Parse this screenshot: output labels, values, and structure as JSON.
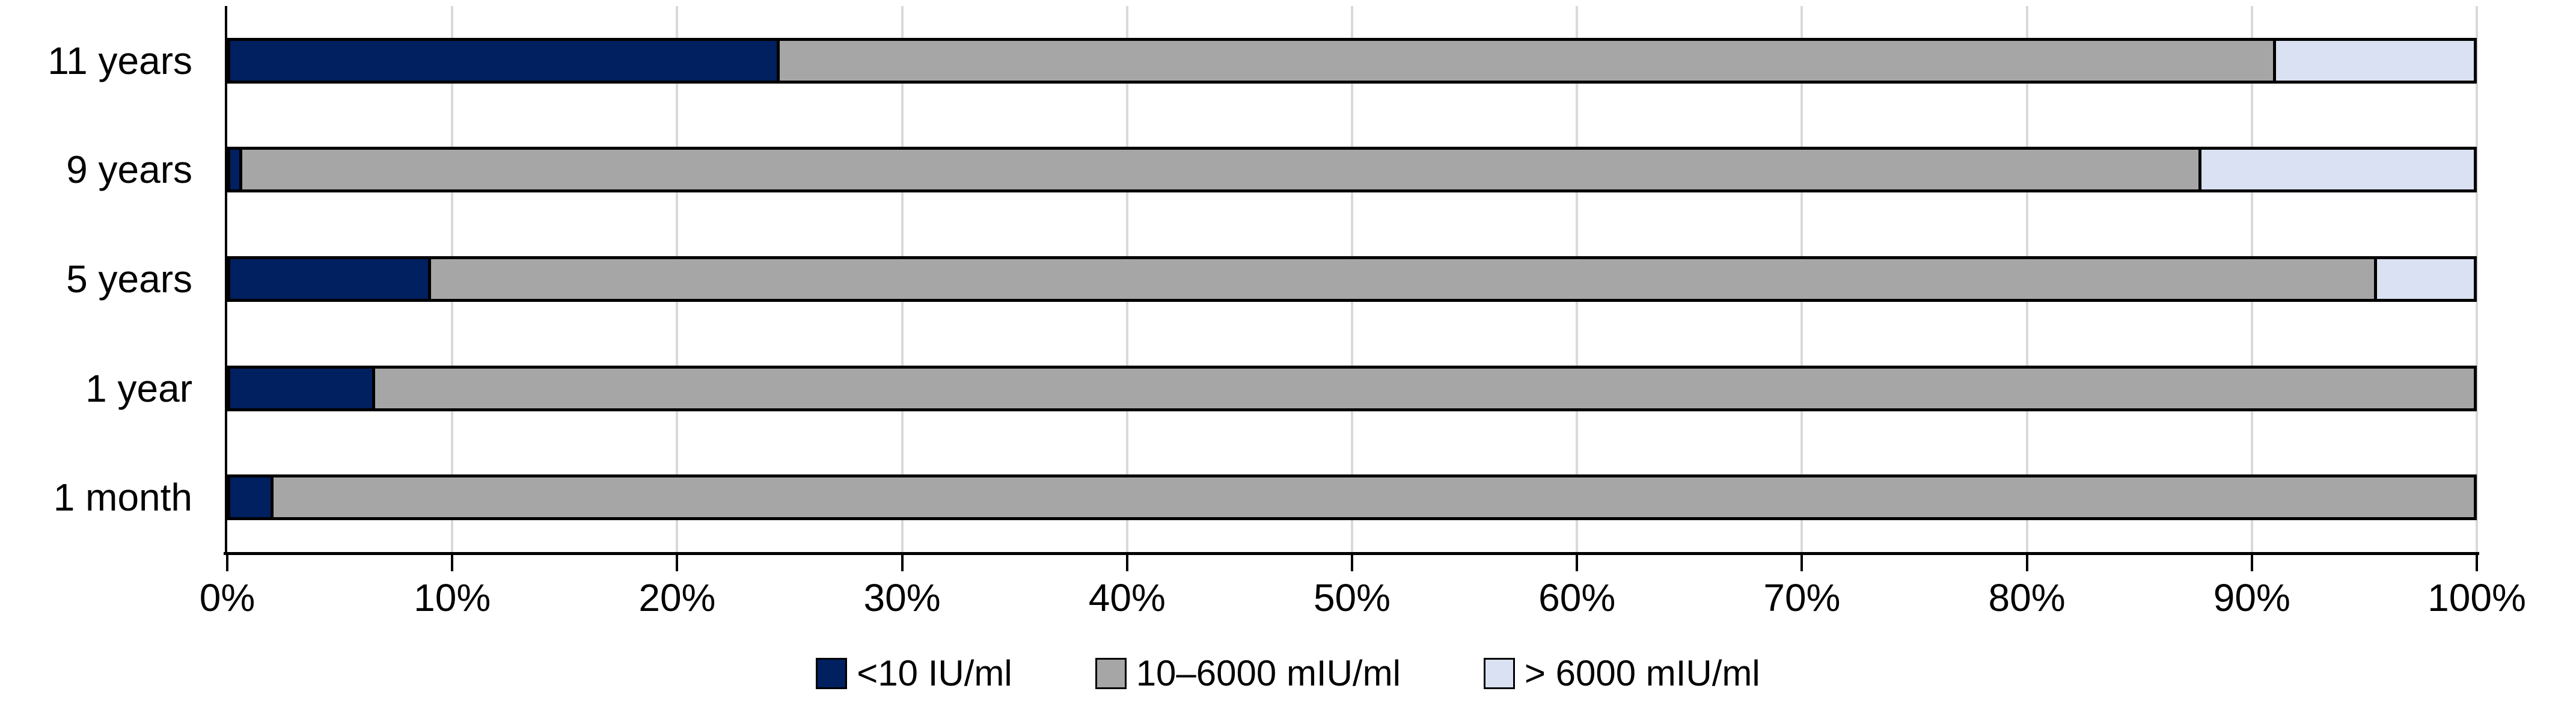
{
  "chart_data": {
    "type": "bar",
    "orientation": "horizontal",
    "stacked": true,
    "unit": "%",
    "title": "",
    "categories": [
      "11 years",
      "9 years",
      "5 years",
      "1 year",
      "1 month"
    ],
    "series": [
      {
        "name": "<10 IU/ml",
        "color": "#002060",
        "values": [
          24.5,
          0.6,
          9.0,
          6.5,
          2.0
        ]
      },
      {
        "name": "10–6000 mIU/ml",
        "color": "#A6A6A6",
        "values": [
          66.5,
          87.1,
          86.5,
          93.5,
          98.0
        ]
      },
      {
        "name": "> 6000 mIU/ml",
        "color": "#D9E1F2",
        "values": [
          9.0,
          12.3,
          4.5,
          0.0,
          0.0
        ]
      }
    ],
    "x_axis": {
      "min": 0,
      "max": 100,
      "tick_step": 10,
      "tick_labels": [
        "0%",
        "10%",
        "20%",
        "30%",
        "40%",
        "50%",
        "60%",
        "70%",
        "80%",
        "90%",
        "100%"
      ]
    },
    "grid": "vertical",
    "legend_position": "bottom",
    "colors": {
      "background": "#FFFFFF",
      "axis": "#000000",
      "gridline": "#D9D9D9",
      "bar_border": "#000000",
      "text": "#000000"
    }
  }
}
